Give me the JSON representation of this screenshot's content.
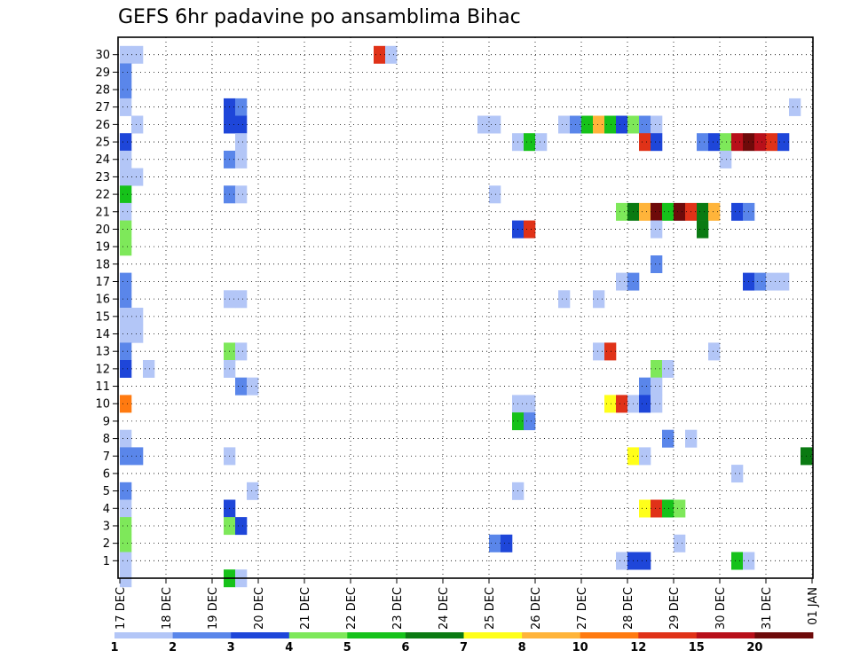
{
  "chart_data": {
    "type": "heatmap",
    "title": "GEFS 6hr padavine po ansamblima Bihac",
    "ylim": [
      0,
      30
    ],
    "y_ticks": [
      "1",
      "2",
      "3",
      "4",
      "5",
      "6",
      "7",
      "8",
      "9",
      "10",
      "11",
      "12",
      "13",
      "14",
      "15",
      "16",
      "17",
      "18",
      "19",
      "20",
      "21",
      "22",
      "23",
      "24",
      "25",
      "26",
      "27",
      "28",
      "29",
      "30"
    ],
    "x_ticks": [
      "17 DEC",
      "18 DEC",
      "19 DEC",
      "20 DEC",
      "21 DEC",
      "22 DEC",
      "23 DEC",
      "24 DEC",
      "25 DEC",
      "26 DEC",
      "27 DEC",
      "28 DEC",
      "29 DEC",
      "30 DEC",
      "31 DEC",
      "01 JAN"
    ],
    "x_step_hours": 6,
    "grid": true,
    "legend": "colorbar-bottom",
    "colorbar": {
      "labels": [
        "1",
        "2",
        "3",
        "4",
        "5",
        "6",
        "7",
        "8",
        "10",
        "12",
        "15",
        "20"
      ],
      "colors": [
        "#b3c6f7",
        "#5a86ea",
        "#1e46d9",
        "#7ee85a",
        "#16c21a",
        "#0a7a12",
        "#ffff1a",
        "#ffb43a",
        "#ff7a10",
        "#e03218",
        "#b8101a",
        "#6e0a0a"
      ]
    },
    "cells": [
      [
        30,
        1,
        0
      ],
      [
        30,
        2,
        0
      ],
      [
        30,
        23,
        9
      ],
      [
        30,
        24,
        0
      ],
      [
        29,
        1,
        1
      ],
      [
        28,
        1,
        1
      ],
      [
        27,
        1,
        0
      ],
      [
        27,
        10,
        2
      ],
      [
        27,
        11,
        1
      ],
      [
        27,
        59,
        0
      ],
      [
        26,
        2,
        0
      ],
      [
        26,
        10,
        2
      ],
      [
        26,
        11,
        2
      ],
      [
        26,
        32,
        0
      ],
      [
        26,
        33,
        0
      ],
      [
        26,
        39,
        0
      ],
      [
        26,
        40,
        1
      ],
      [
        26,
        41,
        4
      ],
      [
        26,
        42,
        7
      ],
      [
        26,
        43,
        4
      ],
      [
        26,
        44,
        2
      ],
      [
        26,
        45,
        3
      ],
      [
        26,
        46,
        1
      ],
      [
        26,
        47,
        0
      ],
      [
        25,
        1,
        2
      ],
      [
        25,
        11,
        0
      ],
      [
        25,
        35,
        0
      ],
      [
        25,
        36,
        4
      ],
      [
        25,
        37,
        0
      ],
      [
        25,
        46,
        9
      ],
      [
        25,
        47,
        2
      ],
      [
        25,
        51,
        1
      ],
      [
        25,
        52,
        2
      ],
      [
        25,
        53,
        3
      ],
      [
        25,
        54,
        10
      ],
      [
        25,
        55,
        11
      ],
      [
        25,
        56,
        10
      ],
      [
        25,
        57,
        9
      ],
      [
        25,
        58,
        2
      ],
      [
        24,
        1,
        0
      ],
      [
        24,
        10,
        1
      ],
      [
        24,
        11,
        0
      ],
      [
        24,
        53,
        0
      ],
      [
        23,
        1,
        0
      ],
      [
        23,
        2,
        0
      ],
      [
        22,
        1,
        4
      ],
      [
        22,
        10,
        1
      ],
      [
        22,
        11,
        0
      ],
      [
        22,
        33,
        0
      ],
      [
        21,
        1,
        0
      ],
      [
        21,
        44,
        3
      ],
      [
        21,
        45,
        5
      ],
      [
        21,
        46,
        7
      ],
      [
        21,
        47,
        11
      ],
      [
        21,
        48,
        4
      ],
      [
        21,
        49,
        11
      ],
      [
        21,
        50,
        9
      ],
      [
        21,
        51,
        5
      ],
      [
        21,
        52,
        7
      ],
      [
        21,
        54,
        2
      ],
      [
        21,
        55,
        1
      ],
      [
        20,
        1,
        3
      ],
      [
        20,
        35,
        2
      ],
      [
        20,
        36,
        9
      ],
      [
        20,
        47,
        0
      ],
      [
        20,
        51,
        5
      ],
      [
        19,
        1,
        3
      ],
      [
        18,
        47,
        1
      ],
      [
        17,
        1,
        1
      ],
      [
        17,
        44,
        0
      ],
      [
        17,
        45,
        1
      ],
      [
        17,
        55,
        2
      ],
      [
        17,
        56,
        1
      ],
      [
        17,
        57,
        0
      ],
      [
        17,
        58,
        0
      ],
      [
        16,
        1,
        1
      ],
      [
        16,
        10,
        0
      ],
      [
        16,
        11,
        0
      ],
      [
        16,
        39,
        0
      ],
      [
        16,
        42,
        0
      ],
      [
        15,
        1,
        0
      ],
      [
        15,
        2,
        0
      ],
      [
        14,
        1,
        0
      ],
      [
        14,
        2,
        0
      ],
      [
        13,
        1,
        1
      ],
      [
        13,
        10,
        3
      ],
      [
        13,
        11,
        0
      ],
      [
        13,
        42,
        0
      ],
      [
        13,
        43,
        9
      ],
      [
        13,
        52,
        0
      ],
      [
        12,
        1,
        2
      ],
      [
        12,
        3,
        0
      ],
      [
        12,
        10,
        0
      ],
      [
        12,
        47,
        3
      ],
      [
        12,
        48,
        0
      ],
      [
        11,
        11,
        1
      ],
      [
        11,
        12,
        0
      ],
      [
        11,
        46,
        1
      ],
      [
        11,
        47,
        0
      ],
      [
        10,
        1,
        8
      ],
      [
        10,
        35,
        0
      ],
      [
        10,
        36,
        0
      ],
      [
        10,
        43,
        6
      ],
      [
        10,
        44,
        9
      ],
      [
        10,
        45,
        0
      ],
      [
        10,
        46,
        2
      ],
      [
        10,
        47,
        0
      ],
      [
        9,
        35,
        4
      ],
      [
        9,
        36,
        1
      ],
      [
        8,
        1,
        0
      ],
      [
        8,
        48,
        1
      ],
      [
        8,
        50,
        0
      ],
      [
        7,
        1,
        1
      ],
      [
        7,
        2,
        1
      ],
      [
        7,
        10,
        0
      ],
      [
        7,
        45,
        6
      ],
      [
        7,
        46,
        0
      ],
      [
        7,
        60,
        5
      ],
      [
        6,
        54,
        0
      ],
      [
        5,
        1,
        1
      ],
      [
        5,
        12,
        0
      ],
      [
        5,
        35,
        0
      ],
      [
        4,
        1,
        0
      ],
      [
        4,
        10,
        2
      ],
      [
        4,
        46,
        6
      ],
      [
        4,
        47,
        9
      ],
      [
        4,
        48,
        4
      ],
      [
        4,
        49,
        3
      ],
      [
        3,
        1,
        3
      ],
      [
        3,
        10,
        3
      ],
      [
        3,
        11,
        2
      ],
      [
        2,
        1,
        3
      ],
      [
        2,
        33,
        1
      ],
      [
        2,
        34,
        2
      ],
      [
        2,
        49,
        0
      ],
      [
        1,
        1,
        0
      ],
      [
        1,
        44,
        0
      ],
      [
        1,
        45,
        2
      ],
      [
        1,
        46,
        2
      ],
      [
        1,
        54,
        4
      ],
      [
        1,
        55,
        0
      ],
      [
        0,
        1,
        0
      ],
      [
        0,
        10,
        4
      ],
      [
        0,
        11,
        0
      ]
    ]
  }
}
